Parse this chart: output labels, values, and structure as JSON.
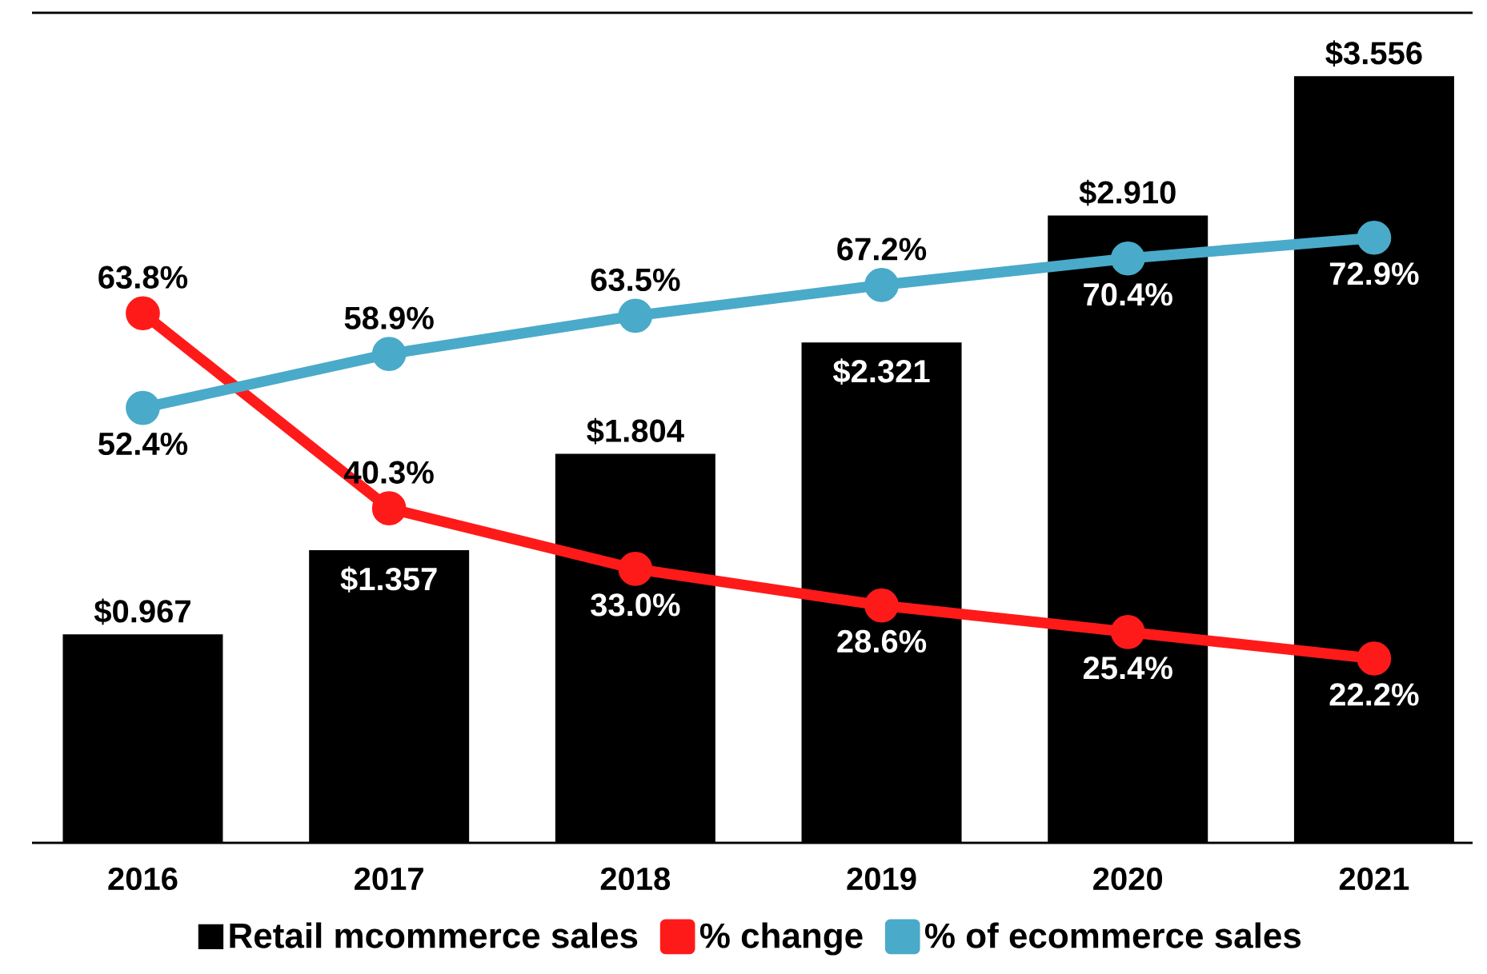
{
  "chart_data": {
    "type": "bar",
    "categories": [
      "2016",
      "2017",
      "2018",
      "2019",
      "2020",
      "2021"
    ],
    "series": [
      {
        "name": "Retail mcommerce sales",
        "color": "#000000",
        "values": [
          0.967,
          1.357,
          1.804,
          2.321,
          2.91,
          3.556
        ],
        "value_labels": [
          "$0.967",
          "$1.357",
          "$1.804",
          "$2.321",
          "$2.910",
          "$3.556"
        ]
      },
      {
        "name": "% change",
        "type": "line",
        "axis": "y2",
        "color": "#ff1a1a",
        "values": [
          63.8,
          40.3,
          33.0,
          28.6,
          25.4,
          22.2
        ],
        "value_labels": [
          "63.8%",
          "40.3%",
          "33.0%",
          "28.6%",
          "25.4%",
          "22.2%"
        ]
      },
      {
        "name": "% of ecommerce sales",
        "type": "line",
        "axis": "y2",
        "color": "#4aaac9",
        "values": [
          52.4,
          58.9,
          63.5,
          67.2,
          70.4,
          72.9
        ],
        "value_labels": [
          "52.4%",
          "58.9%",
          "63.5%",
          "67.2%",
          "70.4%",
          "72.9%"
        ]
      }
    ],
    "ylim": [
      0,
      3.85
    ],
    "y2lim": [
      0,
      100
    ],
    "tick_labels": "x",
    "legend": "bottom",
    "marker": "circle",
    "line_style": "solid"
  }
}
